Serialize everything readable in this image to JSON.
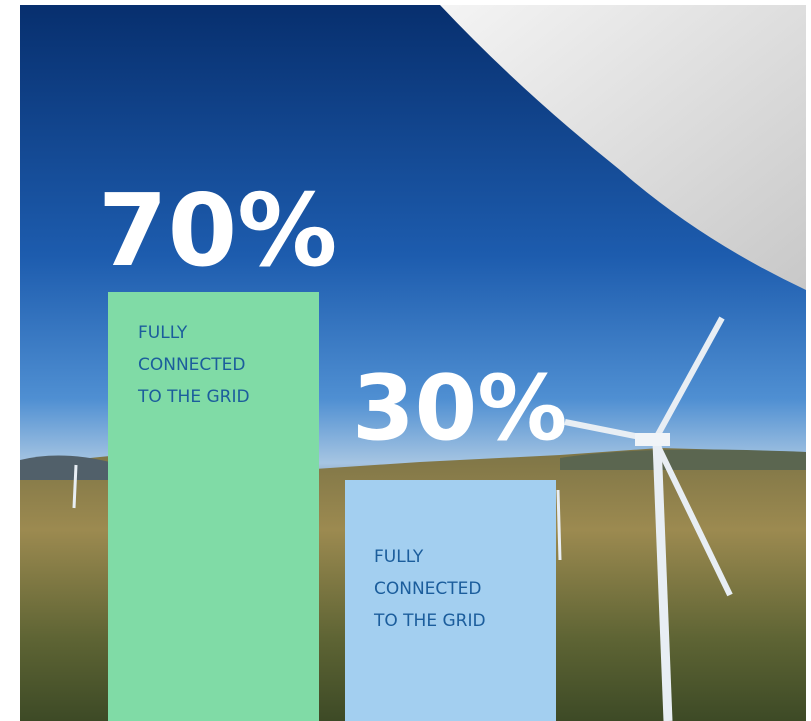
{
  "items": [
    {
      "value": "70%",
      "lines": [
        "FULLY",
        "CONNECTED",
        "TO THE GRID"
      ]
    },
    {
      "value": "30%",
      "lines": [
        "FULLY",
        "CONNECTED",
        "TO THE GRID"
      ]
    }
  ]
}
